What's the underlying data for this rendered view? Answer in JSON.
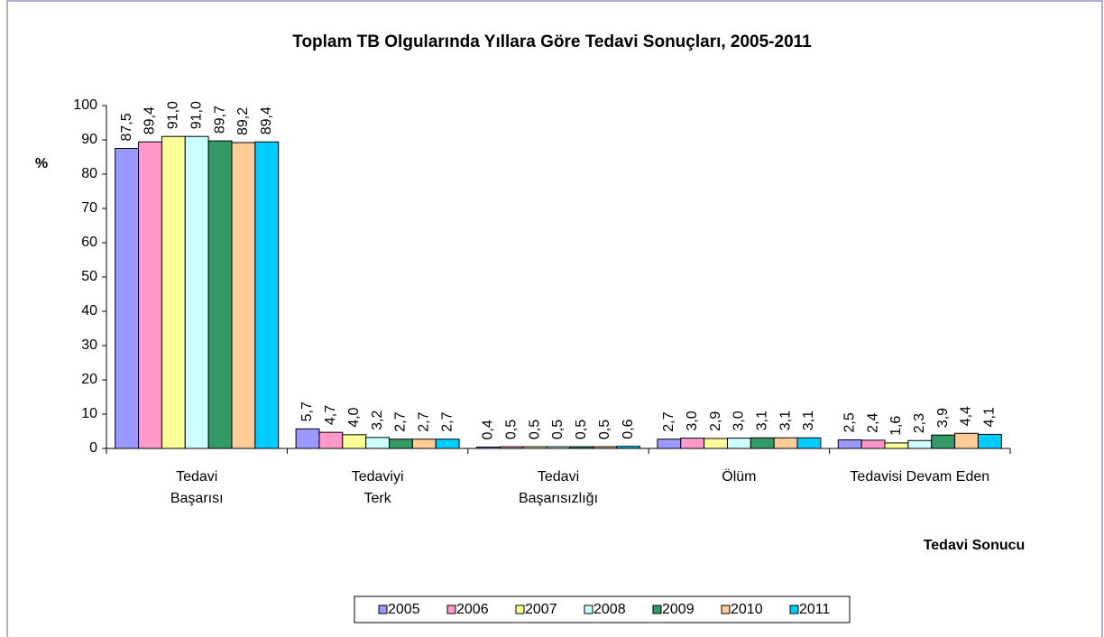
{
  "chart_data": {
    "type": "bar",
    "title": "Toplam TB Olgularında Yıllara Göre Tedavi Sonuçları, 2005-2011",
    "y_label": "%",
    "x_label": "Tedavi Sonucu",
    "categories": [
      [
        "Tedavi",
        "Başarısı"
      ],
      [
        "Tedaviyi",
        "Terk"
      ],
      [
        "Tedavi",
        "Başarısızlığı"
      ],
      [
        "Ölüm"
      ],
      [
        "Tedavisi Devam Eden"
      ]
    ],
    "ylim": [
      0,
      100
    ],
    "yticks": [
      0,
      10,
      20,
      30,
      40,
      50,
      60,
      70,
      80,
      90,
      100
    ],
    "legend": "bottom",
    "series": [
      {
        "name": "2005",
        "color": "#9999ff",
        "values": [
          87.5,
          5.7,
          0.4,
          2.7,
          2.5
        ],
        "value_labels": [
          "87,5",
          "5,7",
          "0,4",
          "2,7",
          "2,5"
        ]
      },
      {
        "name": "2006",
        "color": "#ff99cc",
        "values": [
          89.4,
          4.7,
          0.5,
          3.0,
          2.4
        ],
        "value_labels": [
          "89,4",
          "4,7",
          "0,5",
          "3,0",
          "2,4"
        ]
      },
      {
        "name": "2007",
        "color": "#ffff99",
        "values": [
          91.0,
          4.0,
          0.5,
          2.9,
          1.6
        ],
        "value_labels": [
          "91,0",
          "4,0",
          "0,5",
          "2,9",
          "1,6"
        ]
      },
      {
        "name": "2008",
        "color": "#ccffff",
        "values": [
          91.0,
          3.2,
          0.5,
          3.0,
          2.3
        ],
        "value_labels": [
          "91,0",
          "3,2",
          "0,5",
          "3,0",
          "2,3"
        ]
      },
      {
        "name": "2009",
        "color": "#339966",
        "values": [
          89.7,
          2.7,
          0.5,
          3.1,
          3.9
        ],
        "value_labels": [
          "89,7",
          "2,7",
          "0,5",
          "3,1",
          "3,9"
        ]
      },
      {
        "name": "2010",
        "color": "#ffcc99",
        "values": [
          89.2,
          2.7,
          0.5,
          3.1,
          4.4
        ],
        "value_labels": [
          "89,2",
          "2,7",
          "0,5",
          "3,1",
          "4,4"
        ]
      },
      {
        "name": "2011",
        "color": "#00ccff",
        "values": [
          89.4,
          2.7,
          0.6,
          3.1,
          4.1
        ],
        "value_labels": [
          "89,4",
          "2,7",
          "0,6",
          "3,1",
          "4,1"
        ]
      }
    ]
  }
}
